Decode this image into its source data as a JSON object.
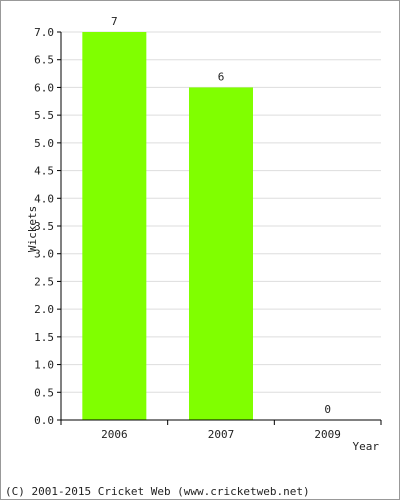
{
  "chart_data": {
    "type": "bar",
    "categories": [
      "2006",
      "2007",
      "2009"
    ],
    "values": [
      7,
      6,
      0
    ],
    "data_labels": [
      "7",
      "6",
      "0"
    ],
    "title": "",
    "xlabel": "Year",
    "ylabel": "Wickets",
    "ylim": [
      0,
      7
    ],
    "y_ticks": [
      "0.0",
      "0.5",
      "1.0",
      "1.5",
      "2.0",
      "2.5",
      "3.0",
      "3.5",
      "4.0",
      "4.5",
      "5.0",
      "5.5",
      "6.0",
      "6.5",
      "7.0"
    ],
    "grid": true,
    "bar_color": "#80ff00",
    "grid_color": "#dddddd",
    "axis_color": "#000000"
  },
  "footer": {
    "copyright": "(C) 2001-2015 Cricket Web (www.cricketweb.net)"
  }
}
